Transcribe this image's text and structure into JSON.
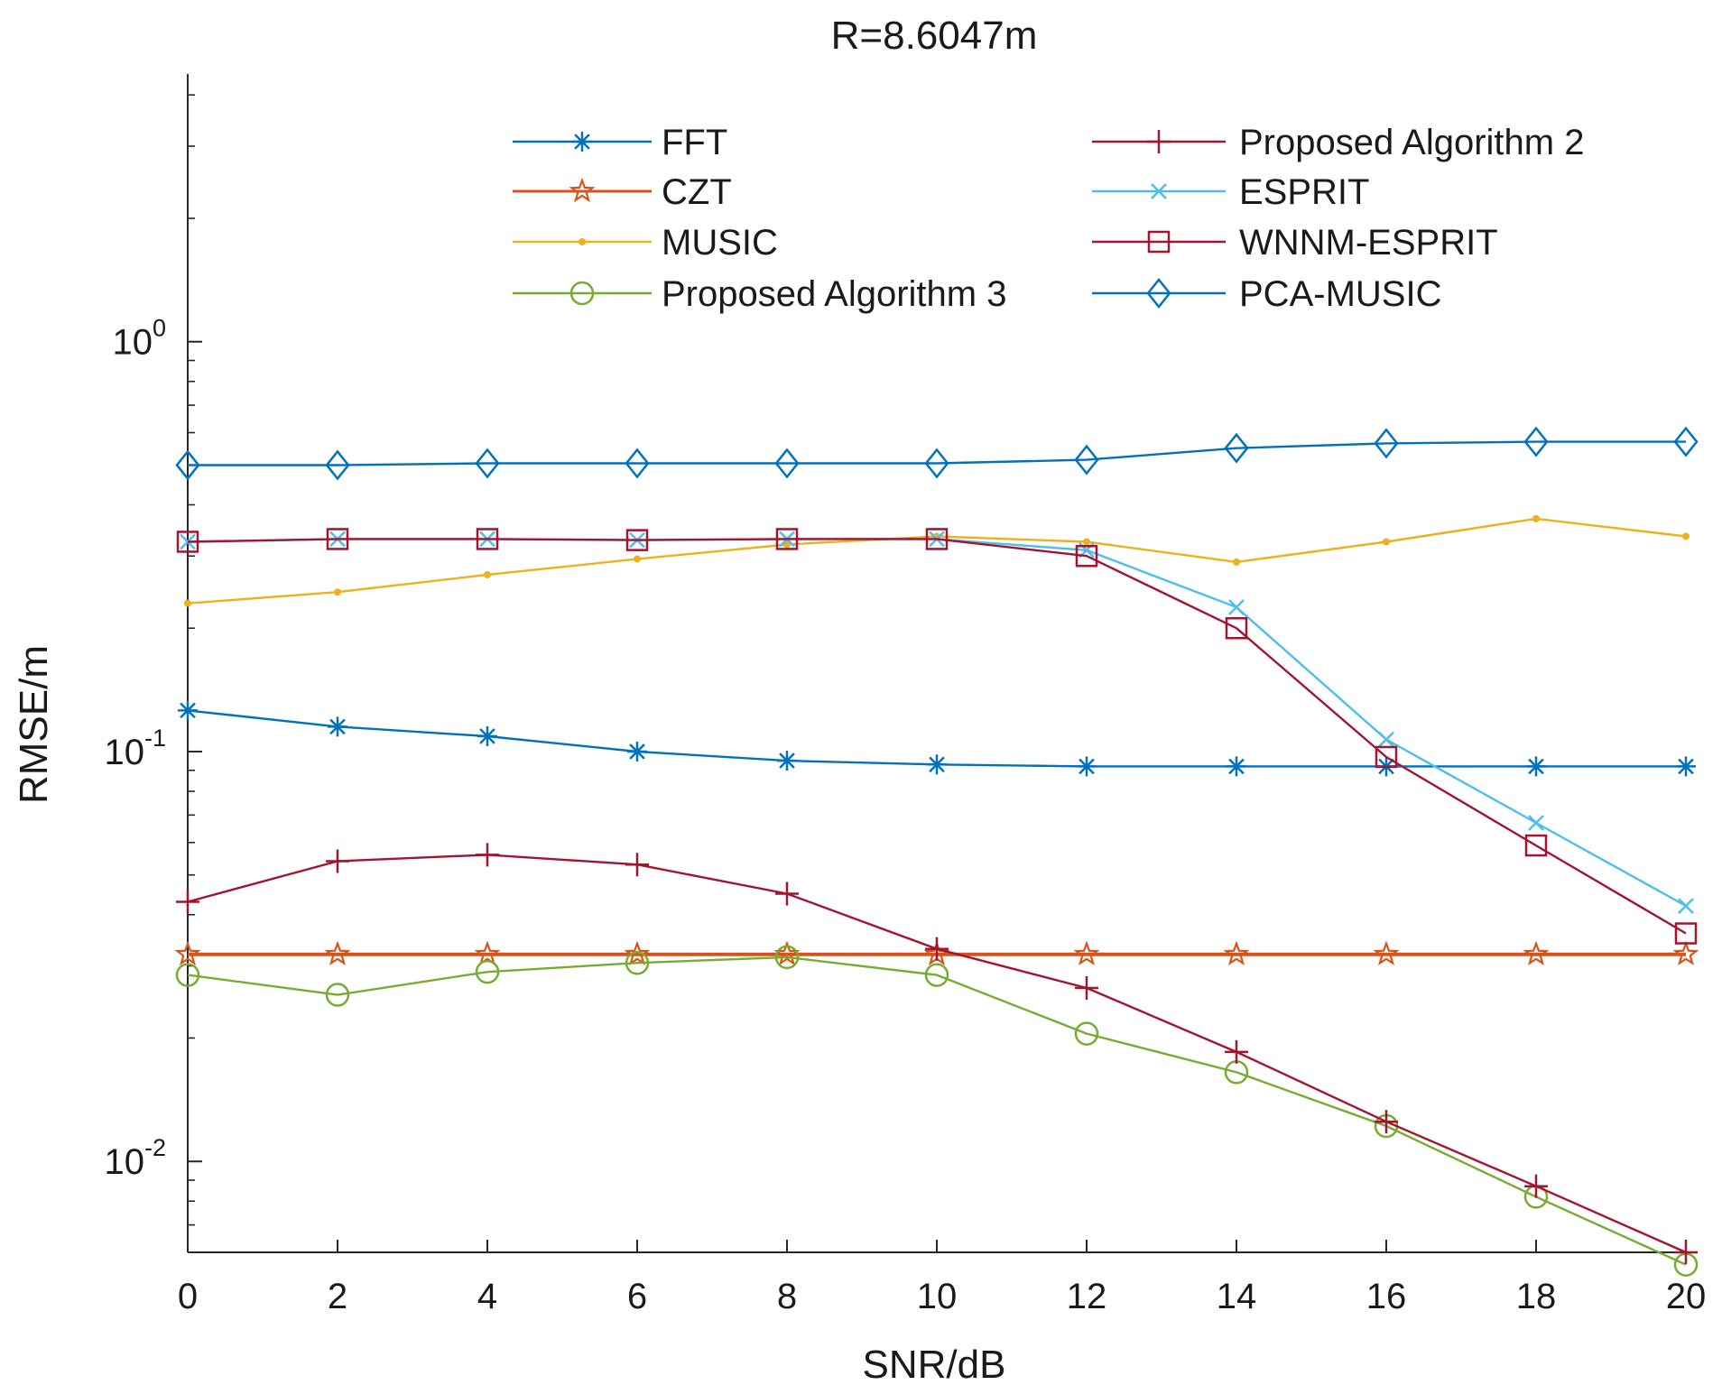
{
  "chart_data": {
    "type": "line",
    "title": "R=8.6047m",
    "xlabel": "SNR/dB",
    "ylabel": "RMSE/m",
    "yscale": "log",
    "xlim": [
      0,
      20
    ],
    "ylim": [
      0.006,
      4.5
    ],
    "x": [
      0,
      2,
      4,
      6,
      8,
      10,
      12,
      14,
      16,
      18,
      20
    ],
    "xticks": [
      0,
      2,
      4,
      6,
      8,
      10,
      12,
      14,
      16,
      18,
      20
    ],
    "xtick_labels": [
      "0",
      "2",
      "4",
      "6",
      "8",
      "10",
      "12",
      "14",
      "16",
      "18",
      "20"
    ],
    "yticks": [
      {
        "value": 0.01,
        "base": "10",
        "exp": "-2"
      },
      {
        "value": 0.1,
        "base": "10",
        "exp": "-1"
      },
      {
        "value": 1,
        "base": "10",
        "exp": "0"
      }
    ],
    "grid": false,
    "legend_position": "top",
    "series": [
      {
        "name": "FFT",
        "color": "#0072BD",
        "marker": "asterisk",
        "values": [
          0.126,
          0.115,
          0.109,
          0.1,
          0.095,
          0.093,
          0.092,
          0.092,
          0.092,
          0.092,
          0.092
        ]
      },
      {
        "name": "CZT",
        "color": "#D95319",
        "marker": "pentagram",
        "values": [
          0.032,
          0.032,
          0.032,
          0.032,
          0.032,
          0.032,
          0.032,
          0.032,
          0.032,
          0.032,
          0.032
        ]
      },
      {
        "name": "MUSIC",
        "color": "#EDB120",
        "marker": "point",
        "values": [
          0.23,
          0.245,
          0.27,
          0.295,
          0.32,
          0.335,
          0.325,
          0.29,
          0.325,
          0.37,
          0.335
        ]
      },
      {
        "name": "Proposed Algorithm 3",
        "color": "#77AC30",
        "marker": "circle",
        "values": [
          0.0285,
          0.0255,
          0.029,
          0.0305,
          0.0315,
          0.0285,
          0.0205,
          0.0165,
          0.0122,
          0.0082,
          0.0056
        ]
      },
      {
        "name": "Proposed Algorithm 2",
        "color": "#A2142F",
        "marker": "plus",
        "values": [
          0.043,
          0.054,
          0.056,
          0.053,
          0.045,
          0.033,
          0.0265,
          0.0185,
          0.0125,
          0.0087,
          0.006
        ]
      },
      {
        "name": "ESPRIT",
        "color": "#4DBEEE",
        "marker": "x",
        "values": [
          0.325,
          0.33,
          0.33,
          0.328,
          0.33,
          0.33,
          0.31,
          0.225,
          0.107,
          0.067,
          0.042
        ]
      },
      {
        "name": "WNNM-ESPRIT",
        "color": "#A2142F",
        "marker": "square",
        "values": [
          0.325,
          0.33,
          0.33,
          0.328,
          0.33,
          0.33,
          0.3,
          0.2,
          0.097,
          0.059,
          0.036
        ]
      },
      {
        "name": "PCA-MUSIC",
        "color": "#0072BD",
        "marker": "diamond",
        "values": [
          0.5,
          0.5,
          0.505,
          0.505,
          0.505,
          0.505,
          0.515,
          0.55,
          0.565,
          0.57,
          0.57
        ]
      }
    ]
  }
}
